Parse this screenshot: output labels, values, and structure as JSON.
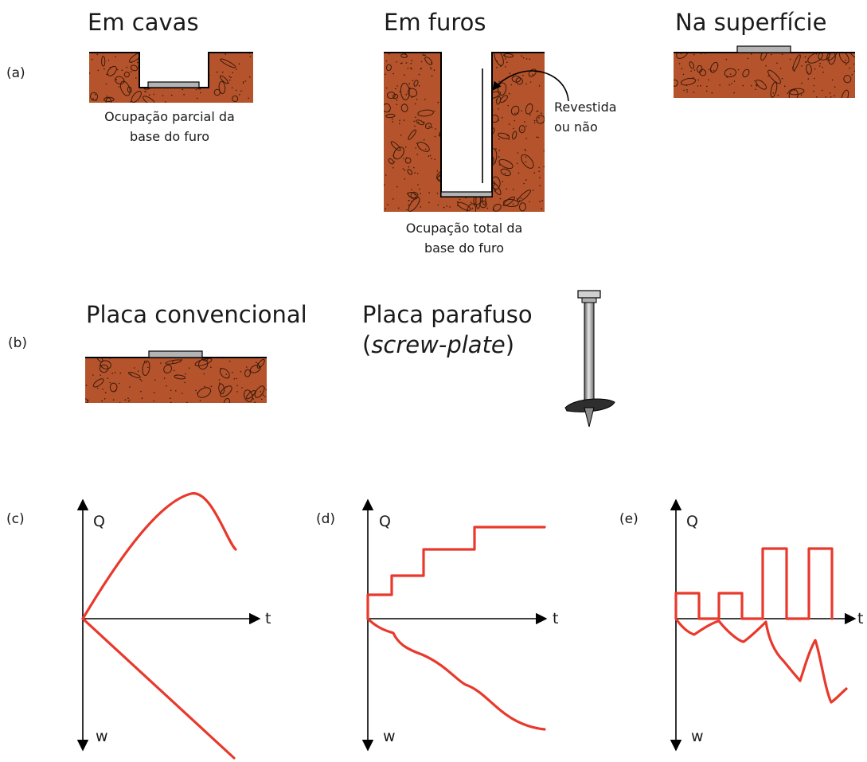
{
  "colors": {
    "soil": "#b5542c",
    "soil_speckle": "#3a1a0a",
    "plate": "#b4b4b4",
    "curve": "#e8392c",
    "ink": "#000000"
  },
  "row_a": {
    "label": "(a)",
    "cavas": {
      "title": "Em cavas",
      "caption_line1": "Ocupação parcial da",
      "caption_line2": "base do furo"
    },
    "furos": {
      "title": "Em furos",
      "caption_line1": "Ocupação total da",
      "caption_line2": "base do furo",
      "callout_line1": "Revestida",
      "callout_line2": "ou não"
    },
    "superficie": {
      "title": "Na superfície"
    }
  },
  "row_b": {
    "label": "(b)",
    "convencional": {
      "title": "Placa convencional"
    },
    "parafuso": {
      "title_line1": "Placa parafuso",
      "title_open": "(",
      "title_italic": "screw-plate",
      "title_close": ")"
    },
    "screw_icon": "screw-plate-icon"
  },
  "graphs": [
    {
      "label": "(c)",
      "q_label": "Q",
      "t_label": "t",
      "w_label": "w"
    },
    {
      "label": "(d)",
      "q_label": "Q",
      "t_label": "t",
      "w_label": "w"
    },
    {
      "label": "(e)",
      "q_label": "Q",
      "t_label": "t",
      "w_label": "w"
    }
  ]
}
